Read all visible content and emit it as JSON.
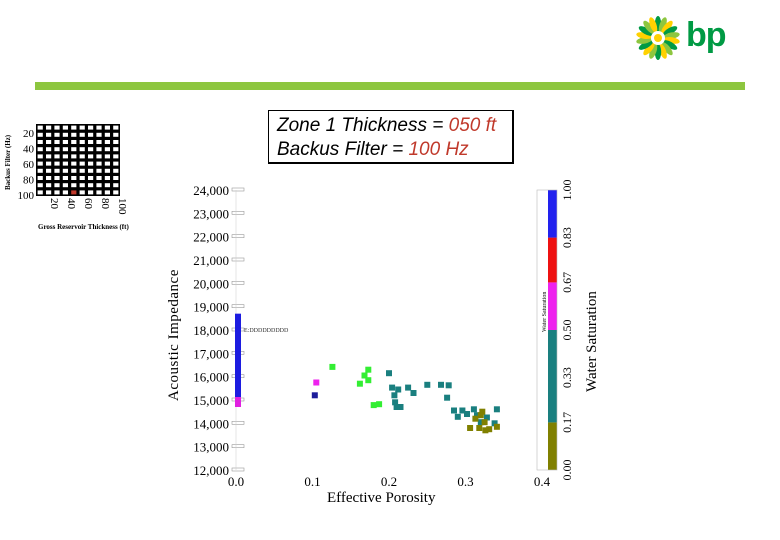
{
  "brand": {
    "name": "bp",
    "primary_color": "#009a44",
    "secondary_color": "#ffd100",
    "bar_color": "#8dc63f"
  },
  "title_box": {
    "line1_prefix": "Zone 1 Thickness = ",
    "line1_value": "050 ft",
    "line2_prefix": "Backus Filter = ",
    "line2_value": "100 Hz",
    "highlight_color": "#c0392b"
  },
  "selector_grid": {
    "ylabel": "Backus Filter (Hz)",
    "xlabel": "Gross Reservoir Thickness (ft)",
    "row_labels": [
      "20",
      "40",
      "60",
      "80",
      "100"
    ],
    "col_labels": [
      "20",
      "40",
      "60",
      "80",
      "100"
    ],
    "rows": 10,
    "cols": 10,
    "selected": {
      "row": 9,
      "col": 4
    }
  },
  "chart_data": {
    "type": "scatter",
    "xlabel": "Effective Porosity",
    "ylabel": "Acoustic Impedance",
    "xlim": [
      0.0,
      0.4
    ],
    "ylim": [
      12000,
      24000
    ],
    "x_ticks": [
      "0.0",
      "0.1",
      "0.2",
      "0.3",
      "0.4"
    ],
    "y_ticks": [
      "12,000",
      "13,000",
      "14,000",
      "15,000",
      "16,000",
      "17,000",
      "18,000",
      "19,000",
      "20,000",
      "21,000",
      "22,000",
      "23,000",
      "24,000"
    ],
    "annotation": "E:DDDDDDDDD",
    "colorbar": {
      "label": "Water Saturation",
      "inner_label": "Water Saturation",
      "ticks": [
        "0.00",
        "0.17",
        "0.33",
        "0.50",
        "0.67",
        "0.83",
        "1.00"
      ],
      "segments": [
        {
          "color": "#808000",
          "from": 0.0,
          "to": 0.17
        },
        {
          "color": "#1a7f7f",
          "from": 0.17,
          "to": 0.5
        },
        {
          "color": "#ee22ee",
          "from": 0.5,
          "to": 0.67
        },
        {
          "color": "#ee1111",
          "from": 0.67,
          "to": 0.83
        },
        {
          "color": "#2222ee",
          "from": 0.83,
          "to": 1.0
        }
      ]
    },
    "vertical_strip": {
      "x": 0.0,
      "y_from": 14700,
      "y_to": 18700,
      "top_color": "#1c1ce0",
      "bottom_color": "#e020e0"
    },
    "points": [
      {
        "x": 0.103,
        "y": 15200,
        "c": "#1c1c9a"
      },
      {
        "x": 0.105,
        "y": 15750,
        "c": "#ee22ee"
      },
      {
        "x": 0.126,
        "y": 16420,
        "c": "#33ee33"
      },
      {
        "x": 0.162,
        "y": 15700,
        "c": "#33ee33"
      },
      {
        "x": 0.168,
        "y": 16050,
        "c": "#33ee33"
      },
      {
        "x": 0.173,
        "y": 16300,
        "c": "#33ee33"
      },
      {
        "x": 0.173,
        "y": 15850,
        "c": "#33ee33"
      },
      {
        "x": 0.18,
        "y": 14780,
        "c": "#33ee33"
      },
      {
        "x": 0.187,
        "y": 14820,
        "c": "#33ee33"
      },
      {
        "x": 0.2,
        "y": 16150,
        "c": "#1a7f7f"
      },
      {
        "x": 0.204,
        "y": 15530,
        "c": "#1a7f7f"
      },
      {
        "x": 0.207,
        "y": 15200,
        "c": "#1a7f7f"
      },
      {
        "x": 0.208,
        "y": 14900,
        "c": "#1a7f7f"
      },
      {
        "x": 0.212,
        "y": 15450,
        "c": "#1a7f7f"
      },
      {
        "x": 0.215,
        "y": 14700,
        "c": "#1a7f7f"
      },
      {
        "x": 0.21,
        "y": 14700,
        "c": "#1a7f7f"
      },
      {
        "x": 0.225,
        "y": 15530,
        "c": "#1a7f7f"
      },
      {
        "x": 0.232,
        "y": 15300,
        "c": "#1a7f7f"
      },
      {
        "x": 0.25,
        "y": 15650,
        "c": "#1a7f7f"
      },
      {
        "x": 0.268,
        "y": 15650,
        "c": "#1a7f7f"
      },
      {
        "x": 0.278,
        "y": 15630,
        "c": "#1a7f7f"
      },
      {
        "x": 0.276,
        "y": 15100,
        "c": "#1a7f7f"
      },
      {
        "x": 0.285,
        "y": 14550,
        "c": "#1a7f7f"
      },
      {
        "x": 0.29,
        "y": 14280,
        "c": "#1a7f7f"
      },
      {
        "x": 0.296,
        "y": 14550,
        "c": "#1a7f7f"
      },
      {
        "x": 0.302,
        "y": 14400,
        "c": "#1a7f7f"
      },
      {
        "x": 0.311,
        "y": 14600,
        "c": "#1a7f7f"
      },
      {
        "x": 0.315,
        "y": 14350,
        "c": "#1a7f7f"
      },
      {
        "x": 0.32,
        "y": 14050,
        "c": "#1a7f7f"
      },
      {
        "x": 0.328,
        "y": 14250,
        "c": "#1a7f7f"
      },
      {
        "x": 0.338,
        "y": 14000,
        "c": "#1a7f7f"
      },
      {
        "x": 0.341,
        "y": 14600,
        "c": "#1a7f7f"
      },
      {
        "x": 0.313,
        "y": 14200,
        "c": "#808000"
      },
      {
        "x": 0.318,
        "y": 13800,
        "c": "#808000"
      },
      {
        "x": 0.322,
        "y": 14500,
        "c": "#808000"
      },
      {
        "x": 0.326,
        "y": 13700,
        "c": "#808000"
      },
      {
        "x": 0.331,
        "y": 13750,
        "c": "#808000"
      },
      {
        "x": 0.32,
        "y": 14350,
        "c": "#808000"
      },
      {
        "x": 0.341,
        "y": 13850,
        "c": "#808000"
      },
      {
        "x": 0.306,
        "y": 13800,
        "c": "#808000"
      },
      {
        "x": 0.325,
        "y": 14050,
        "c": "#808000"
      }
    ]
  }
}
